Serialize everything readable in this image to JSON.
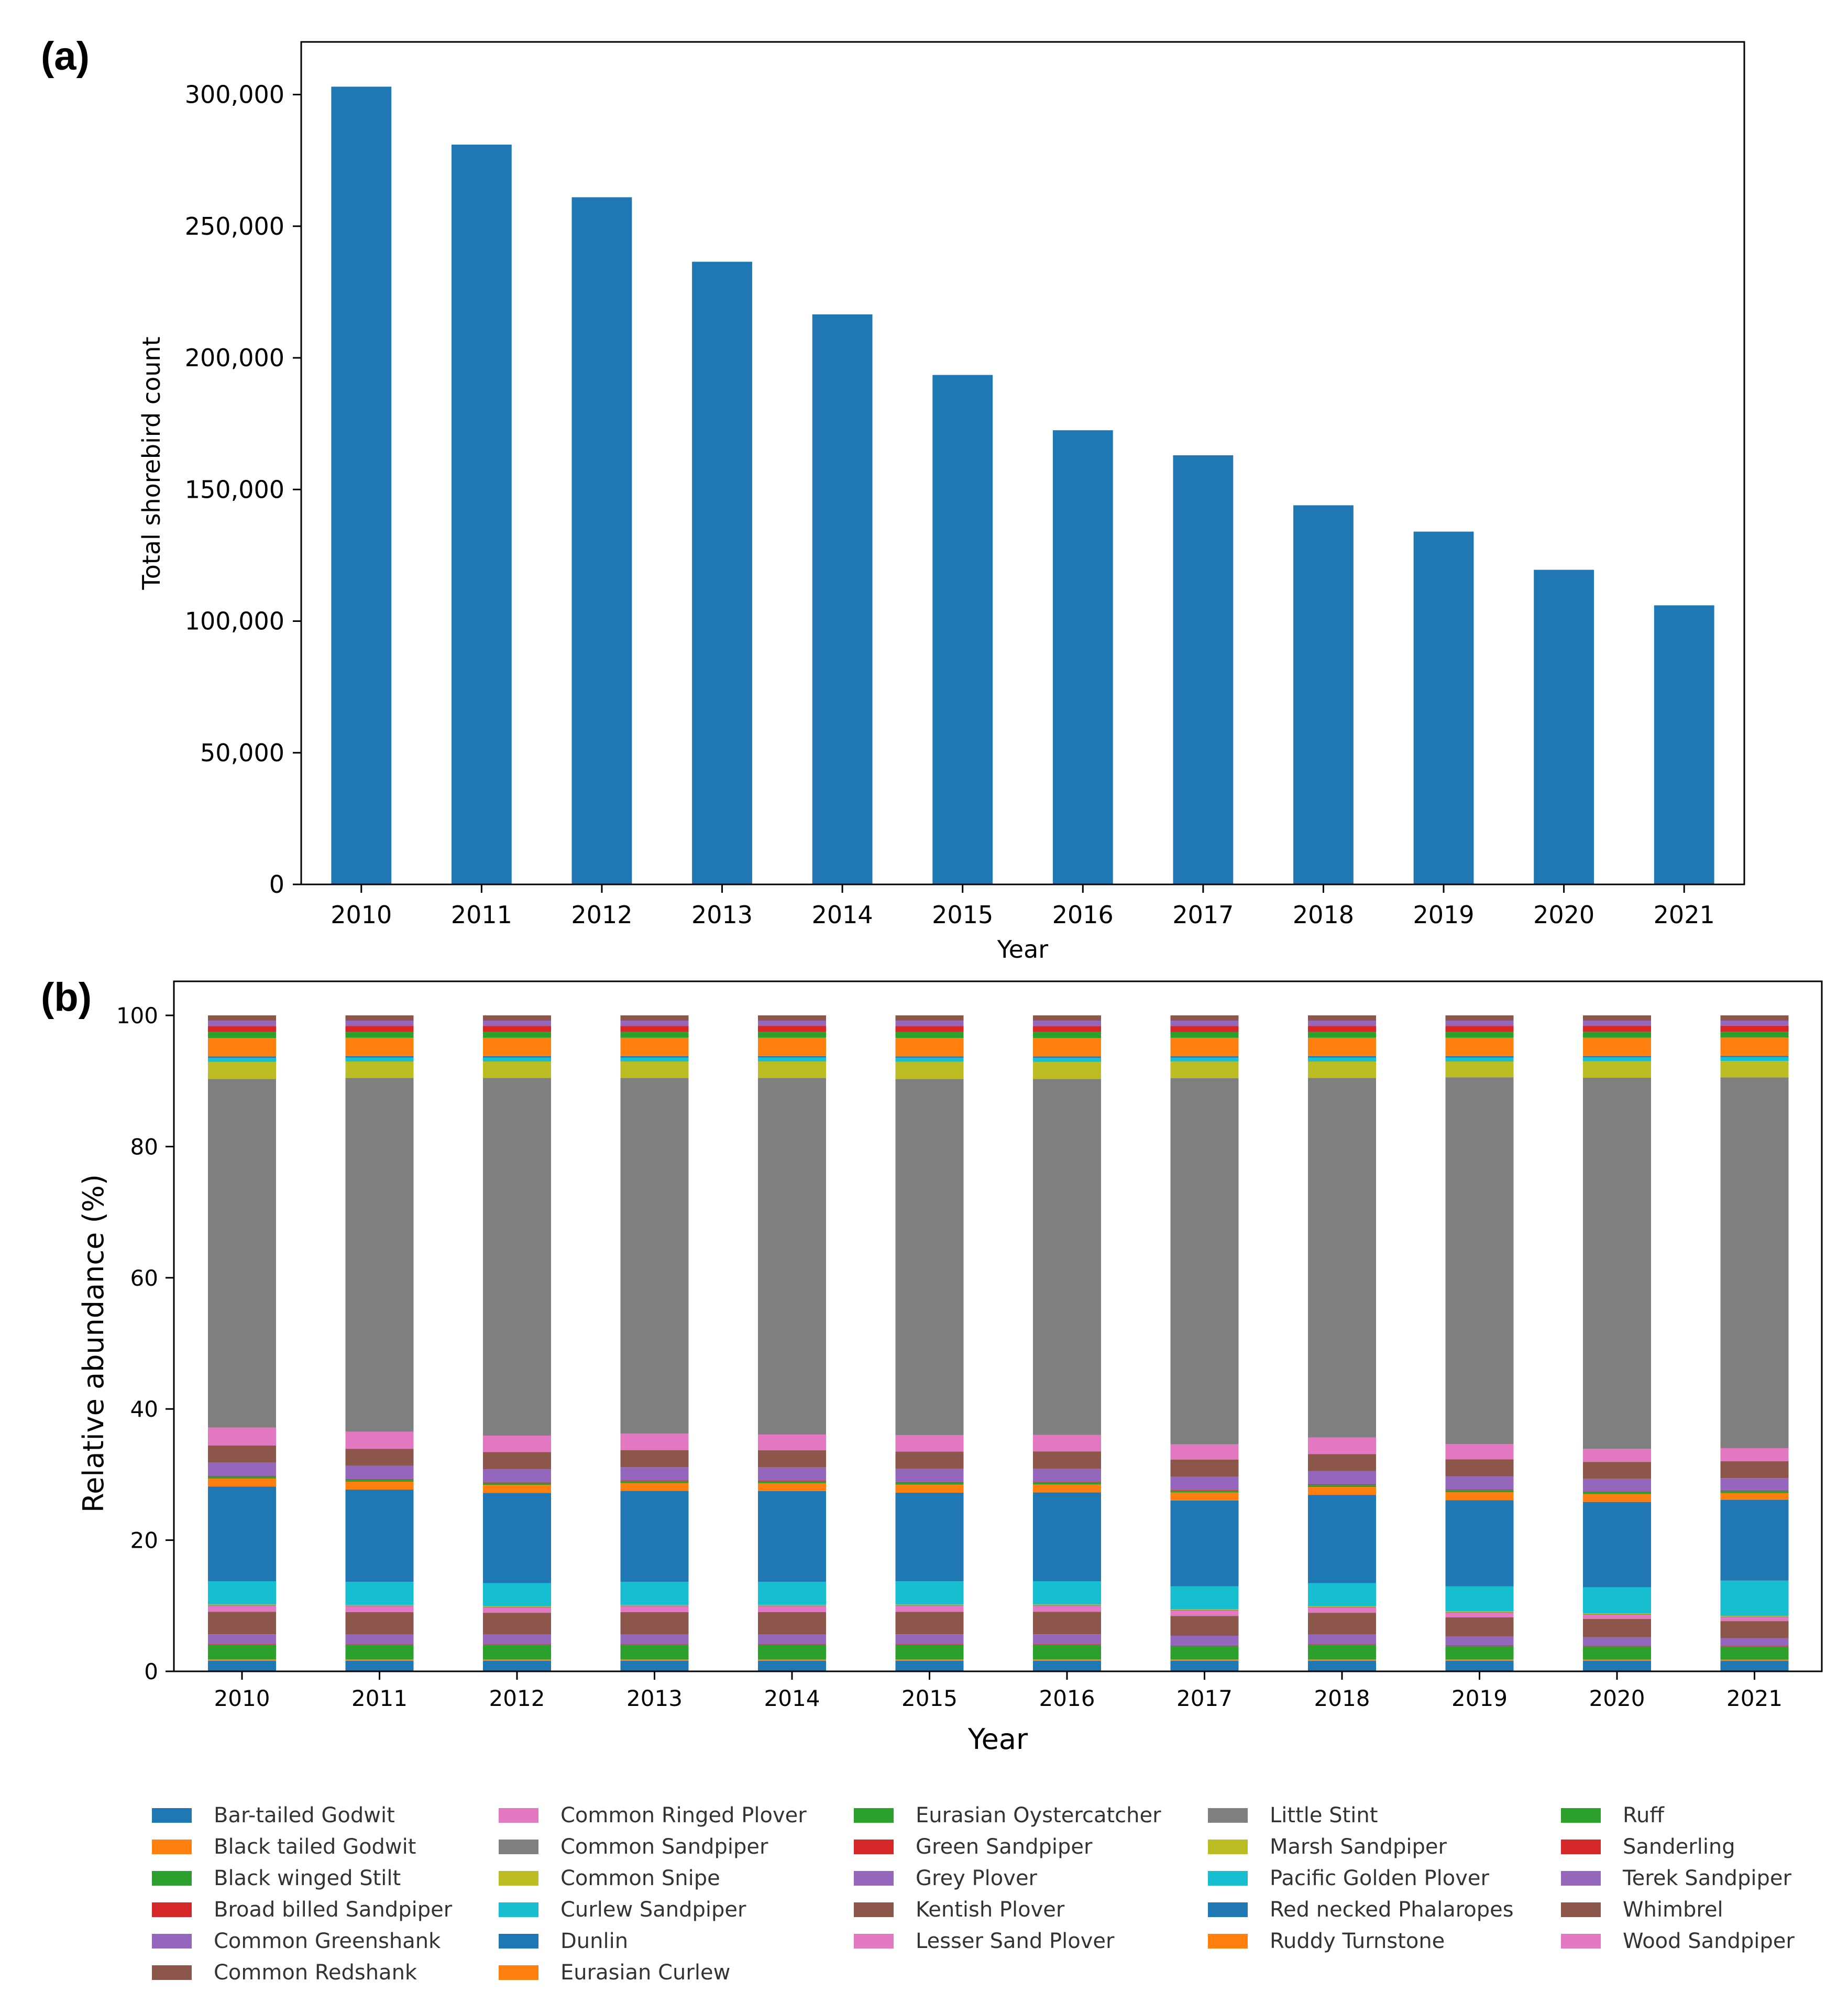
{
  "panels": {
    "a": "(a)",
    "b": "(b)"
  },
  "chart_data": [
    {
      "type": "bar",
      "categories": [
        "2010",
        "2011",
        "2012",
        "2013",
        "2014",
        "2015",
        "2016",
        "2017",
        "2018",
        "2019",
        "2020",
        "2021"
      ],
      "values": [
        303000,
        281000,
        261000,
        236500,
        216500,
        193500,
        172500,
        163000,
        144000,
        134000,
        119500,
        106000
      ],
      "color": "#1f77b4",
      "title": "",
      "xlabel": "Year",
      "ylabel": "Total shorebird count",
      "ylim": [
        0,
        320000
      ],
      "yticks": [
        0,
        50000,
        100000,
        150000,
        200000,
        250000,
        300000
      ],
      "ytick_labels": [
        "0",
        "50,000",
        "100,000",
        "150,000",
        "200,000",
        "250,000",
        "300,000"
      ],
      "grid": false
    },
    {
      "type": "bar",
      "stacked": true,
      "categories": [
        "2010",
        "2011",
        "2012",
        "2013",
        "2014",
        "2015",
        "2016",
        "2017",
        "2018",
        "2019",
        "2020",
        "2021"
      ],
      "xlabel": "Year",
      "ylabel": "Relative abundance (%)",
      "ylim": [
        0,
        100
      ],
      "yticks": [
        0,
        20,
        40,
        60,
        80,
        100
      ],
      "ytick_labels": [
        "0",
        "20",
        "40",
        "60",
        "80",
        "100"
      ],
      "legend_position": "bottom",
      "series": [
        {
          "name": "Bar-tailed Godwit",
          "color": "#1f77b4",
          "values": [
            1.6,
            1.6,
            1.6,
            1.6,
            1.6,
            1.6,
            1.6,
            1.6,
            1.6,
            1.6,
            1.6,
            1.6
          ]
        },
        {
          "name": "Black tailed Godwit",
          "color": "#ff7f0e",
          "values": [
            0.2,
            0.2,
            0.2,
            0.2,
            0.2,
            0.2,
            0.2,
            0.2,
            0.2,
            0.2,
            0.2,
            0.2
          ]
        },
        {
          "name": "Black winged Stilt",
          "color": "#2ca02c",
          "values": [
            2.2,
            2.2,
            2.2,
            2.2,
            2.2,
            2.2,
            2.2,
            2.0,
            2.2,
            2.0,
            2.0,
            2.0
          ]
        },
        {
          "name": "Broad billed Sandpiper",
          "color": "#d62728",
          "values": [
            0.1,
            0.1,
            0.1,
            0.1,
            0.1,
            0.1,
            0.1,
            0.1,
            0.1,
            0.1,
            0.1,
            0.1
          ]
        },
        {
          "name": "Common Greenshank",
          "color": "#9467bd",
          "values": [
            1.5,
            1.5,
            1.5,
            1.5,
            1.5,
            1.5,
            1.5,
            1.5,
            1.5,
            1.4,
            1.3,
            1.2
          ]
        },
        {
          "name": "Common Redshank",
          "color": "#8c564b",
          "values": [
            3.4,
            3.4,
            3.3,
            3.4,
            3.4,
            3.4,
            3.4,
            3.0,
            3.3,
            2.9,
            2.8,
            2.6
          ]
        },
        {
          "name": "Common Ringed Plover",
          "color": "#e377c2",
          "values": [
            0.9,
            0.9,
            0.8,
            0.9,
            0.9,
            0.9,
            0.9,
            0.8,
            0.8,
            0.7,
            0.6,
            0.6
          ]
        },
        {
          "name": "Common Sandpiper",
          "color": "#7f7f7f",
          "values": [
            0.1,
            0.1,
            0.1,
            0.1,
            0.1,
            0.1,
            0.1,
            0.1,
            0.1,
            0.1,
            0.1,
            0.1
          ]
        },
        {
          "name": "Common Snipe",
          "color": "#bcbd22",
          "values": [
            0.1,
            0.1,
            0.1,
            0.1,
            0.1,
            0.1,
            0.1,
            0.1,
            0.1,
            0.1,
            0.1,
            0.1
          ]
        },
        {
          "name": "Curlew Sandpiper",
          "color": "#17becf",
          "values": [
            3.5,
            3.5,
            3.5,
            3.5,
            3.5,
            3.5,
            3.5,
            3.5,
            3.5,
            3.8,
            4.0,
            5.4
          ]
        },
        {
          "name": "Dunlin",
          "color": "#1f77b4",
          "values": [
            14.3,
            14.0,
            13.7,
            13.8,
            13.8,
            13.4,
            13.4,
            13.0,
            13.4,
            13.1,
            13.0,
            12.4
          ]
        },
        {
          "name": "Eurasian Curlew",
          "color": "#ff7f0e",
          "values": [
            1.2,
            1.2,
            1.2,
            1.2,
            1.2,
            1.2,
            1.2,
            1.2,
            1.2,
            1.2,
            1.2,
            1.0
          ]
        },
        {
          "name": "Eurasian Oystercatcher",
          "color": "#2ca02c",
          "values": [
            0.3,
            0.3,
            0.3,
            0.3,
            0.3,
            0.3,
            0.3,
            0.3,
            0.3,
            0.3,
            0.3,
            0.3
          ]
        },
        {
          "name": "Green Sandpiper",
          "color": "#d62728",
          "values": [
            0.1,
            0.1,
            0.1,
            0.1,
            0.1,
            0.1,
            0.1,
            0.1,
            0.1,
            0.1,
            0.1,
            0.1
          ]
        },
        {
          "name": "Grey Plover",
          "color": "#9467bd",
          "values": [
            2.0,
            2.0,
            2.0,
            2.0,
            2.0,
            2.0,
            2.0,
            2.0,
            2.0,
            2.0,
            1.9,
            1.9
          ]
        },
        {
          "name": "Kentish Plover",
          "color": "#8c564b",
          "values": [
            2.6,
            2.6,
            2.6,
            2.6,
            2.6,
            2.6,
            2.6,
            2.6,
            2.6,
            2.6,
            2.6,
            2.6
          ]
        },
        {
          "name": "Lesser Sand Plover",
          "color": "#e377c2",
          "values": [
            2.7,
            2.6,
            2.5,
            2.5,
            2.4,
            2.5,
            2.5,
            2.3,
            2.5,
            2.3,
            2.0,
            2.0
          ]
        },
        {
          "name": "Little Stint",
          "color": "#7f7f7f",
          "values": [
            52.6,
            53.7,
            54.3,
            54.0,
            54.2,
            53.8,
            53.7,
            55.5,
            54.6,
            55.7,
            56.5,
            56.8
          ]
        },
        {
          "name": "Marsh Sandpiper",
          "color": "#bcbd22",
          "values": [
            2.6,
            2.5,
            2.5,
            2.5,
            2.5,
            2.6,
            2.6,
            2.5,
            2.5,
            2.4,
            2.5,
            2.5
          ]
        },
        {
          "name": "Pacific Golden Plover",
          "color": "#17becf",
          "values": [
            0.6,
            0.6,
            0.6,
            0.6,
            0.6,
            0.6,
            0.6,
            0.6,
            0.6,
            0.6,
            0.6,
            0.6
          ]
        },
        {
          "name": "Red necked Phalaropes",
          "color": "#1f77b4",
          "values": [
            0.2,
            0.2,
            0.2,
            0.2,
            0.2,
            0.2,
            0.2,
            0.2,
            0.2,
            0.2,
            0.2,
            0.2
          ]
        },
        {
          "name": "Ruddy Turnstone",
          "color": "#ff7f0e",
          "values": [
            2.8,
            2.8,
            2.8,
            2.8,
            2.8,
            2.8,
            2.8,
            2.8,
            2.8,
            2.8,
            2.8,
            2.8
          ]
        },
        {
          "name": "Ruff",
          "color": "#2ca02c",
          "values": [
            0.9,
            0.9,
            0.9,
            0.9,
            0.9,
            0.9,
            0.9,
            0.9,
            0.9,
            0.9,
            0.9,
            0.9
          ]
        },
        {
          "name": "Sanderling",
          "color": "#d62728",
          "values": [
            0.9,
            0.9,
            0.9,
            0.9,
            0.9,
            0.9,
            0.9,
            0.9,
            0.9,
            0.9,
            0.9,
            0.9
          ]
        },
        {
          "name": "Terek Sandpiper",
          "color": "#9467bd",
          "values": [
            0.8,
            0.8,
            0.8,
            0.8,
            0.8,
            0.8,
            0.8,
            0.8,
            0.8,
            0.8,
            0.8,
            0.8
          ]
        },
        {
          "name": "Whimbrel",
          "color": "#8c564b",
          "values": [
            0.8,
            0.8,
            0.8,
            0.8,
            0.8,
            0.8,
            0.8,
            0.8,
            0.8,
            0.8,
            0.8,
            0.8
          ]
        },
        {
          "name": "Wood Sandpiper",
          "color": "#e377c2",
          "values": [
            0.0,
            0.0,
            0.0,
            0.0,
            0.0,
            0.0,
            0.0,
            0.0,
            0.0,
            0.0,
            0.0,
            0.0
          ]
        }
      ]
    }
  ]
}
